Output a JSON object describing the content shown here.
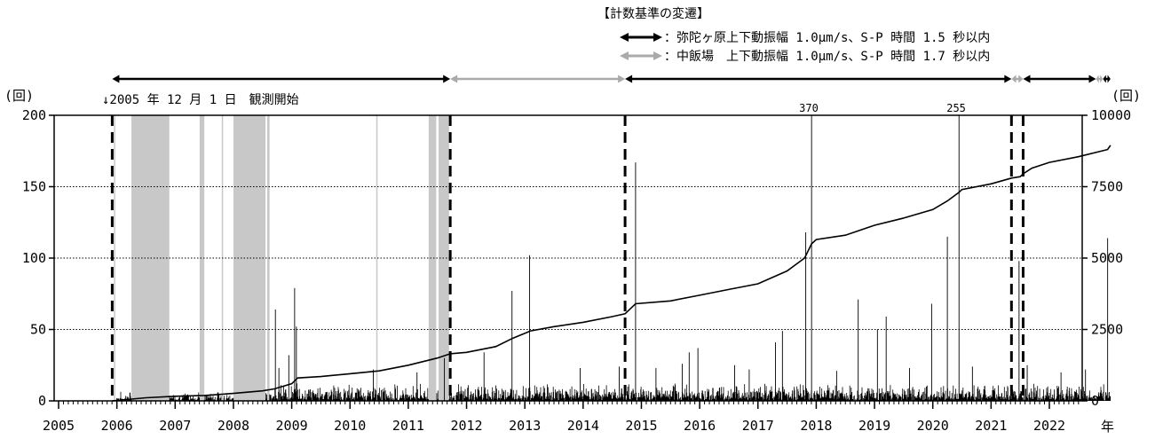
{
  "chart_data": {
    "type": "bar",
    "legend": {
      "title": "【計数基準の変遷】",
      "entries": [
        {
          "label": "：弥陀ヶ原上下動振幅 1.0μm/s、S-P 時間 1.5 秒以内",
          "color": "#000000"
        },
        {
          "label": "：中飯場　上下動振幅 1.0μm/s、S-P 時間 1.7 秒以内",
          "color": "#aaaaaa"
        }
      ]
    },
    "annotation": "↓2005 年 12 月 1 日　観測開始",
    "y_left": {
      "label": "(回)",
      "range": [
        0,
        200
      ],
      "ticks": [
        "0",
        "50",
        "100",
        "150",
        "200"
      ]
    },
    "y_right": {
      "label": "(回)",
      "range": [
        0,
        10000
      ],
      "ticks": [
        "0",
        "2500",
        "5000",
        "7500",
        "10000"
      ]
    },
    "x": {
      "unit": "年",
      "range": [
        2005,
        2023.1
      ],
      "ticks": [
        "2005",
        "2006",
        "2007",
        "2008",
        "2009",
        "2010",
        "2011",
        "2012",
        "2013",
        "2014",
        "2015",
        "2016",
        "2017",
        "2018",
        "2019",
        "2020",
        "2021",
        "2022"
      ]
    },
    "grid_y": true,
    "criteria_periods": [
      {
        "start": 2005.92,
        "end": 2011.72,
        "criterion": "弥陀ヶ原"
      },
      {
        "start": 2011.72,
        "end": 2014.72,
        "criterion": "中飯場"
      },
      {
        "start": 2014.72,
        "end": 2021.35,
        "criterion": "弥陀ヶ原"
      },
      {
        "start": 2021.35,
        "end": 2021.55,
        "criterion": "中飯場"
      },
      {
        "start": 2021.55,
        "end": 2022.8,
        "criterion": "弥陀ヶ原"
      },
      {
        "start": 2022.8,
        "end": 2022.92,
        "criterion": "中飯場"
      },
      {
        "start": 2022.92,
        "end": 2023.05,
        "criterion": "弥陀ヶ原"
      }
    ],
    "dashed_lines_x": [
      2005.92,
      2011.72,
      2014.72,
      2021.35,
      2021.55
    ],
    "gray_periods": [
      [
        2006.25,
        2006.9
      ],
      [
        2007.42,
        2007.5
      ],
      [
        2008.0,
        2008.55
      ],
      [
        2008.58,
        2008.62
      ],
      [
        2011.35,
        2011.48
      ],
      [
        2011.52,
        2011.7
      ],
      [
        2010.45,
        2010.47
      ],
      [
        2007.8,
        2007.82
      ],
      [
        2005.95,
        2005.97
      ]
    ],
    "offscale_labels": [
      {
        "x": 2017.92,
        "text": "370"
      },
      {
        "x": 2020.45,
        "text": "255"
      }
    ],
    "tall_spikes": [
      {
        "x": 2008.72,
        "y": 64
      },
      {
        "x": 2008.95,
        "y": 32
      },
      {
        "x": 2009.05,
        "y": 79
      },
      {
        "x": 2009.08,
        "y": 52
      },
      {
        "x": 2008.78,
        "y": 23
      },
      {
        "x": 2011.62,
        "y": 30
      },
      {
        "x": 2012.3,
        "y": 34
      },
      {
        "x": 2012.78,
        "y": 77
      },
      {
        "x": 2013.08,
        "y": 102
      },
      {
        "x": 2013.95,
        "y": 23
      },
      {
        "x": 2014.62,
        "y": 24
      },
      {
        "x": 2014.9,
        "y": 167
      },
      {
        "x": 2015.25,
        "y": 23
      },
      {
        "x": 2015.7,
        "y": 26
      },
      {
        "x": 2015.82,
        "y": 34
      },
      {
        "x": 2015.97,
        "y": 37
      },
      {
        "x": 2016.6,
        "y": 25
      },
      {
        "x": 2017.3,
        "y": 41
      },
      {
        "x": 2017.42,
        "y": 49
      },
      {
        "x": 2017.82,
        "y": 118
      },
      {
        "x": 2017.92,
        "y": 200
      },
      {
        "x": 2018.72,
        "y": 71
      },
      {
        "x": 2019.05,
        "y": 50
      },
      {
        "x": 2019.2,
        "y": 59
      },
      {
        "x": 2019.98,
        "y": 68
      },
      {
        "x": 2020.25,
        "y": 115
      },
      {
        "x": 2020.45,
        "y": 200
      },
      {
        "x": 2020.68,
        "y": 24
      },
      {
        "x": 2021.48,
        "y": 98
      },
      {
        "x": 2021.62,
        "y": 25
      },
      {
        "x": 2022.62,
        "y": 22
      },
      {
        "x": 2023.0,
        "y": 114
      },
      {
        "x": 2010.4,
        "y": 22
      },
      {
        "x": 2011.15,
        "y": 20
      },
      {
        "x": 2016.85,
        "y": 22
      },
      {
        "x": 2018.35,
        "y": 21
      },
      {
        "x": 2019.6,
        "y": 23
      },
      {
        "x": 2022.2,
        "y": 20
      }
    ],
    "cumulative": {
      "x": [
        2005.92,
        2006.5,
        2007.0,
        2007.5,
        2008.0,
        2008.5,
        2008.7,
        2009.0,
        2009.1,
        2009.5,
        2010.0,
        2010.5,
        2011.0,
        2011.5,
        2011.72,
        2012.0,
        2012.5,
        2012.8,
        2013.1,
        2013.5,
        2014.0,
        2014.5,
        2014.72,
        2014.9,
        2015.5,
        2016.0,
        2016.5,
        2017.0,
        2017.5,
        2017.8,
        2017.92,
        2018.0,
        2018.5,
        2019.0,
        2019.5,
        2020.0,
        2020.25,
        2020.45,
        2020.5,
        2021.0,
        2021.35,
        2021.5,
        2021.55,
        2021.7,
        2022.0,
        2022.5,
        2023.0,
        2023.05
      ],
      "y": [
        0,
        110,
        160,
        190,
        260,
        350,
        420,
        600,
        800,
        850,
        950,
        1050,
        1250,
        1500,
        1650,
        1700,
        1900,
        2200,
        2450,
        2600,
        2750,
        2950,
        3050,
        3400,
        3500,
        3700,
        3900,
        4100,
        4550,
        5000,
        5500,
        5650,
        5800,
        6150,
        6400,
        6700,
        7000,
        7300,
        7400,
        7600,
        7800,
        7850,
        7950,
        8150,
        8350,
        8550,
        8800,
        8950
      ]
    }
  }
}
